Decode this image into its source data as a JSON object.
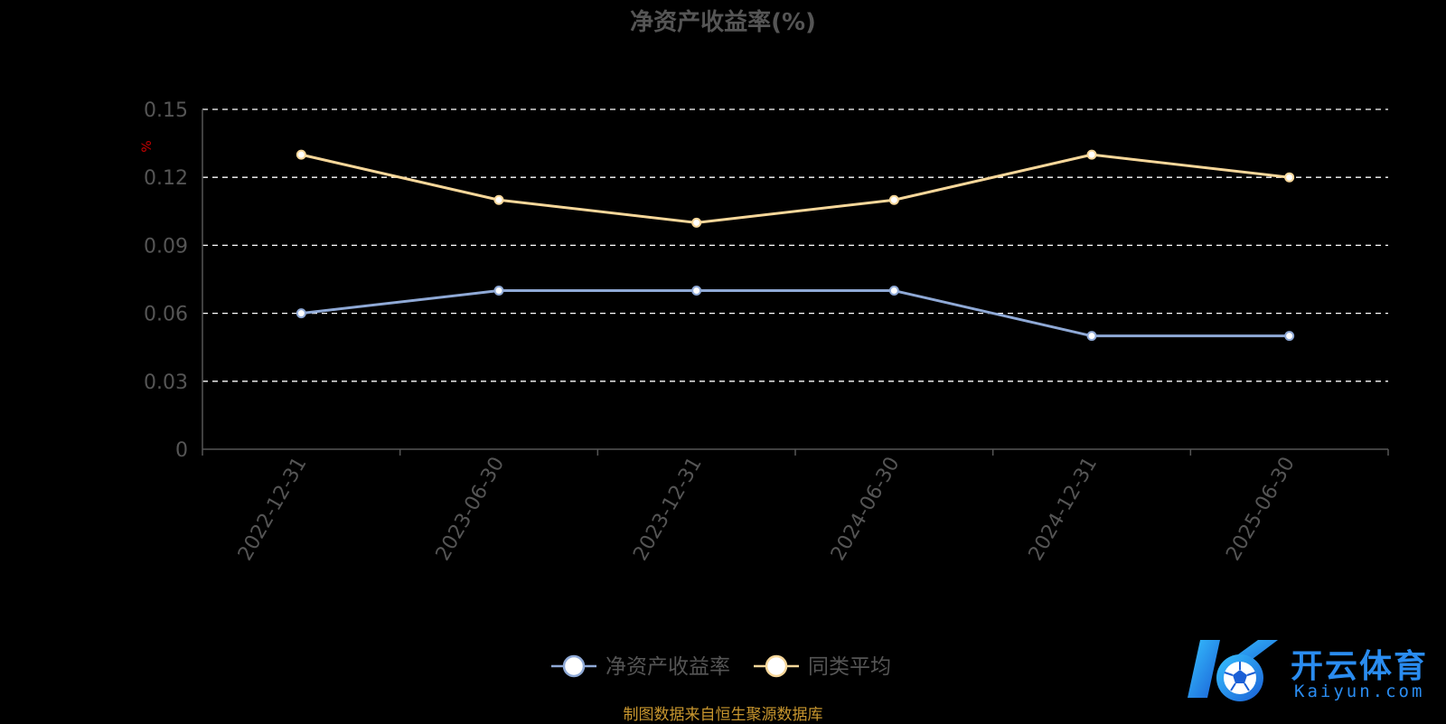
{
  "chart_data": {
    "type": "line",
    "title": "净资产收益率(%)",
    "ylabel": "%",
    "xlabel": "",
    "categories": [
      "2022-12-31",
      "2023-06-30",
      "2023-12-31",
      "2024-06-30",
      "2024-12-31",
      "2025-06-30"
    ],
    "ylim": [
      0,
      0.15
    ],
    "yticks": [
      "0",
      "0.03",
      "0.06",
      "0.09",
      "0.12",
      "0.15"
    ],
    "grid": true,
    "legend": "bottom-center",
    "series": [
      {
        "name": "净资产收益率",
        "values": [
          0.06,
          0.07,
          0.07,
          0.07,
          0.05,
          0.05
        ],
        "color": "#8fa9d6"
      },
      {
        "name": "同类平均",
        "values": [
          0.13,
          0.11,
          0.1,
          0.11,
          0.13,
          0.12
        ],
        "color": "#f7d79a"
      }
    ]
  },
  "footer": {
    "source": "制图数据来自恒生聚源数据库"
  },
  "watermark": {
    "brand_cn": "开云体育",
    "brand_en": "Kaiyun.com",
    "icon": "soccer-ball-logo"
  },
  "colors": {
    "background": "#000000",
    "title": "#555555",
    "axis_text": "#555555",
    "grid": "#ffffff",
    "ylabel": "#cc0000",
    "source": "#c8962e",
    "brand": "#2a8cf0"
  }
}
